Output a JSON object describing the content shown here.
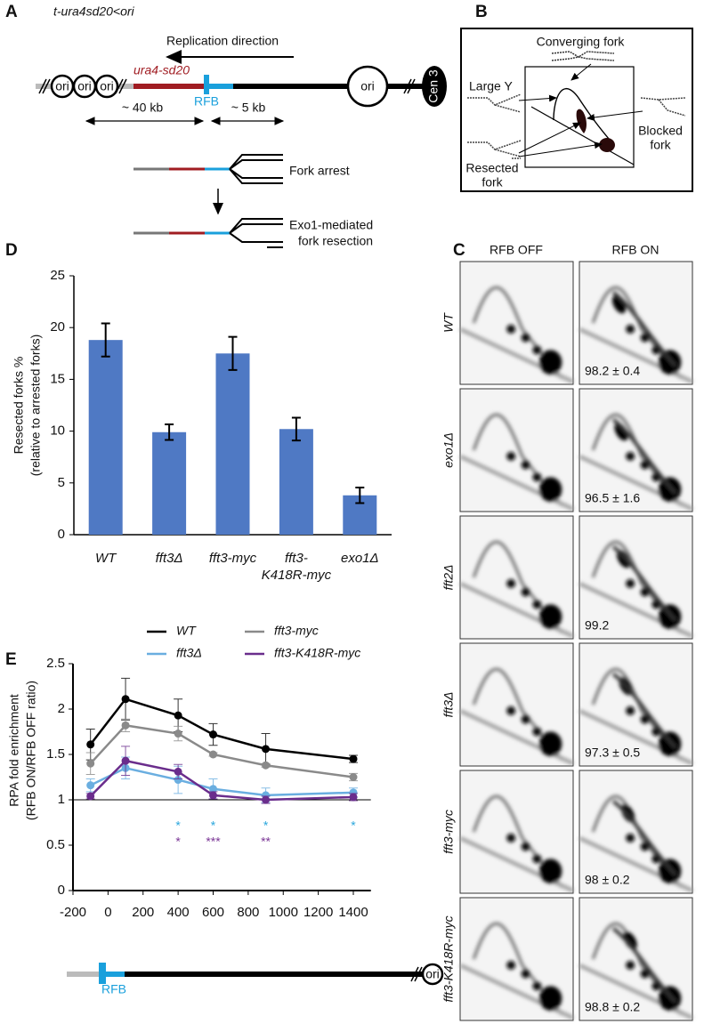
{
  "panel_labels": [
    "A",
    "B",
    "C",
    "D",
    "E"
  ],
  "panel_a": {
    "construct": "t-ura4sd20<ori",
    "replication_direction": "Replication direction",
    "ori_left": [
      "ori",
      "ori",
      "ori"
    ],
    "gene": "ura4-sd20",
    "rfb": "RFB",
    "ori_right": "ori",
    "centromere": "Cen 3",
    "distance_left": "~ 40 kb",
    "distance_right": "~ 5 kb",
    "fork_arrest": "Fork arrest",
    "resection": [
      "Exo1-mediated",
      "fork resection"
    ]
  },
  "panel_b": {
    "converging": "Converging fork",
    "large_y": "Large Y",
    "blocked": [
      "Blocked",
      "fork"
    ],
    "resected": [
      "Resected",
      "fork"
    ]
  },
  "panel_c": {
    "columns": [
      "RFB OFF",
      "RFB ON"
    ],
    "rows": [
      {
        "strain": "WT",
        "value": "98.2 ± 0.4"
      },
      {
        "strain": "exo1Δ",
        "value": "96.5 ± 1.6"
      },
      {
        "strain": "fft2Δ",
        "value": "99.2"
      },
      {
        "strain": "fft3Δ",
        "value": "97.3 ± 0.5"
      },
      {
        "strain": "fft3-myc",
        "value": "98 ± 0.2"
      },
      {
        "strain": "fft3-K418R-myc",
        "value": "98.8 ± 0.2"
      }
    ]
  },
  "chart_data": [
    {
      "type": "bar",
      "ylabel": [
        "Resected forks %",
        "(relative to arrested forks)"
      ],
      "categories": [
        "WT",
        "fft3Δ",
        "fft3-myc",
        [
          "fft3-",
          "K418R-myc"
        ],
        "exo1Δ"
      ],
      "values": [
        18.8,
        9.9,
        17.5,
        10.2,
        3.8
      ],
      "errors": [
        1.6,
        0.75,
        1.6,
        1.1,
        0.75
      ],
      "color": "#4f79c4",
      "ylim": [
        0,
        25
      ],
      "yticks": [
        0,
        5,
        10,
        15,
        20,
        25
      ]
    },
    {
      "type": "line",
      "ylabel": [
        "RPA fold enrichment",
        "(RFB ON/RFB OFF ratio)"
      ],
      "x": [
        -100,
        100,
        400,
        600,
        900,
        1400
      ],
      "xlim": [
        -200,
        1500
      ],
      "xticks": [
        -200,
        0,
        200,
        400,
        600,
        800,
        1000,
        1200,
        1400
      ],
      "ylim": [
        0,
        2.5
      ],
      "yticks": [
        0,
        0.5,
        1,
        1.5,
        2,
        2.5
      ],
      "reference_line": 1,
      "series": [
        {
          "name": "WT",
          "color": "#000000",
          "values": [
            1.61,
            2.11,
            1.93,
            1.72,
            1.56,
            1.45
          ],
          "errors": [
            0.17,
            0.23,
            0.18,
            0.12,
            0.17,
            0.04
          ]
        },
        {
          "name": "fft3-myc",
          "color": "#8a8a8a",
          "values": [
            1.4,
            1.82,
            1.73,
            1.5,
            1.38,
            1.25
          ],
          "errors": [
            0.12,
            0.07,
            0.08,
            0.02,
            0.02,
            0.04
          ]
        },
        {
          "name": "fft3Δ",
          "color": "#6aaee0",
          "values": [
            1.16,
            1.35,
            1.22,
            1.12,
            1.05,
            1.08
          ],
          "errors": [
            0.07,
            0.12,
            0.15,
            0.11,
            0.08,
            0.05
          ]
        },
        {
          "name": "fft3-K418R-myc",
          "color": "#6a2d8c",
          "values": [
            1.04,
            1.43,
            1.31,
            1.05,
            1.0,
            1.03
          ],
          "errors": [
            0.03,
            0.16,
            0.08,
            0.04,
            0.04,
            0.04
          ]
        }
      ],
      "annotations": [
        {
          "color": "#2aa6dc",
          "marks": [
            {
              "x": 400,
              "label": "*"
            },
            {
              "x": 600,
              "label": "*"
            },
            {
              "x": 900,
              "label": "*"
            },
            {
              "x": 1400,
              "label": "*"
            }
          ]
        },
        {
          "color": "#7a3595",
          "marks": [
            {
              "x": 400,
              "label": "*"
            },
            {
              "x": 600,
              "label": "***"
            },
            {
              "x": 900,
              "label": "**"
            }
          ]
        }
      ]
    }
  ],
  "panel_e_diagram": {
    "rfb": "RFB",
    "ori": "ori"
  }
}
